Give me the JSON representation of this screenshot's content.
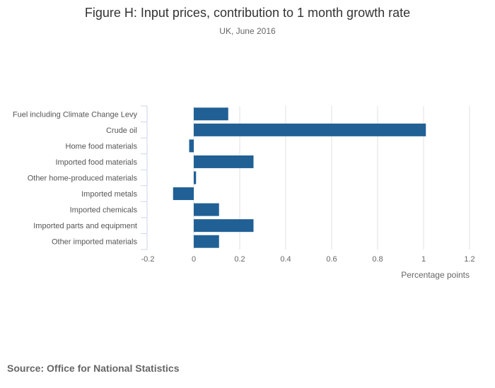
{
  "chart_data": {
    "type": "bar",
    "orientation": "horizontal",
    "title": "Figure H: Input prices, contribution to 1 month growth rate",
    "subtitle": "UK, June 2016",
    "categories": [
      "Fuel including Climate Change Levy",
      "Crude oil",
      "Home food materials",
      "Imported food materials",
      "Other home-produced materials",
      "Imported metals",
      "Imported chemicals",
      "Imported parts and equipment",
      "Other imported materials"
    ],
    "values": [
      0.15,
      1.01,
      -0.02,
      0.26,
      0.01,
      -0.09,
      0.11,
      0.26,
      0.11
    ],
    "xlabel": "Percentage points",
    "ylabel": "",
    "xlim": [
      -0.2,
      1.2
    ],
    "xticks": [
      "-0.2",
      "0",
      "0.2",
      "0.4",
      "0.6",
      "0.8",
      "1",
      "1.2"
    ],
    "grid": true,
    "bar_color": "#206095",
    "source": "Source: Office for National Statistics"
  }
}
